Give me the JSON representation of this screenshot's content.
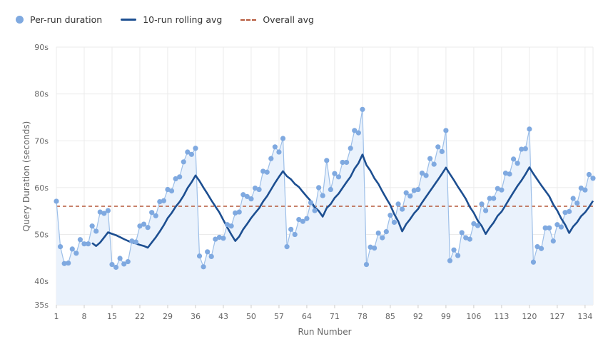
{
  "legend": {
    "per_run": "Per-run duration",
    "rolling": "10-run rolling avg",
    "overall": "Overall avg"
  },
  "colors": {
    "points": "#7fa9e0",
    "point_line": "#9dbfe8",
    "area_fill": "#eaf2fc",
    "rolling": "#1d4f91",
    "overall": "#b5583a",
    "grid": "#ebebeb"
  },
  "chart_data": {
    "type": "line",
    "xlabel": "Run Number",
    "ylabel": "Query Duration (seconds)",
    "xlim": [
      1,
      136
    ],
    "ylim": [
      35,
      90
    ],
    "x_ticks": [
      "1",
      "8",
      "15",
      "22",
      "29",
      "36",
      "43",
      "50",
      "57",
      "64",
      "71",
      "78",
      "85",
      "92",
      "99",
      "106",
      "113",
      "120",
      "127",
      "134"
    ],
    "y_ticks": [
      {
        "value": 35,
        "label": "35s"
      },
      {
        "value": 40,
        "label": "40s"
      },
      {
        "value": 50,
        "label": "50s"
      },
      {
        "value": 60,
        "label": "60s"
      },
      {
        "value": 70,
        "label": "70s"
      },
      {
        "value": 80,
        "label": "80s"
      },
      {
        "value": 90,
        "label": "90s"
      }
    ],
    "grid": true,
    "legend_position": "top-left",
    "rolling_window": 10,
    "series": [
      {
        "name": "Per-run duration",
        "style": "points",
        "values": [
          57.1,
          47.4,
          43.8,
          43.9,
          46.9,
          46.0,
          48.9,
          48.0,
          48.0,
          51.8,
          50.7,
          54.8,
          54.5,
          55.1,
          43.6,
          43.0,
          44.9,
          43.7,
          44.2,
          48.6,
          48.4,
          51.8,
          52.2,
          51.5,
          54.7,
          54.0,
          57.0,
          57.2,
          59.6,
          59.3,
          61.9,
          62.3,
          65.5,
          67.6,
          67.1,
          68.4,
          45.4,
          43.1,
          46.3,
          45.3,
          49.0,
          49.4,
          49.2,
          52.1,
          51.8,
          54.6,
          54.8,
          58.5,
          58.1,
          57.6,
          59.9,
          59.6,
          63.5,
          63.3,
          66.2,
          68.7,
          67.6,
          70.5,
          47.4,
          51.1,
          50.0,
          53.2,
          52.8,
          53.4,
          56.8,
          55.1,
          60.0,
          58.3,
          65.8,
          59.6,
          63.0,
          62.3,
          65.4,
          65.4,
          68.4,
          72.2,
          71.7,
          76.7,
          43.6,
          47.3,
          47.1,
          50.3,
          49.3,
          50.6,
          54.1,
          52.6,
          56.5,
          55.4,
          58.9,
          58.2,
          59.4,
          59.6,
          63.1,
          62.6,
          66.2,
          65.0,
          68.7,
          67.7,
          72.2,
          44.4,
          46.7,
          45.5,
          50.4,
          49.3,
          49.0,
          52.3,
          51.9,
          56.5,
          55.1,
          57.7,
          57.7,
          59.8,
          59.5,
          63.1,
          62.9,
          66.1,
          65.2,
          68.2,
          68.3,
          72.5,
          44.1,
          47.4,
          47.0,
          51.4,
          51.4,
          48.6,
          52.1,
          51.6,
          54.7,
          54.9,
          57.7,
          56.7,
          59.9,
          59.5,
          62.8,
          62.0
        ]
      },
      {
        "name": "10-run rolling avg",
        "style": "line",
        "derived_from": "Per-run duration"
      },
      {
        "name": "Overall avg",
        "style": "dashed",
        "derived_from": "Per-run duration"
      }
    ]
  }
}
